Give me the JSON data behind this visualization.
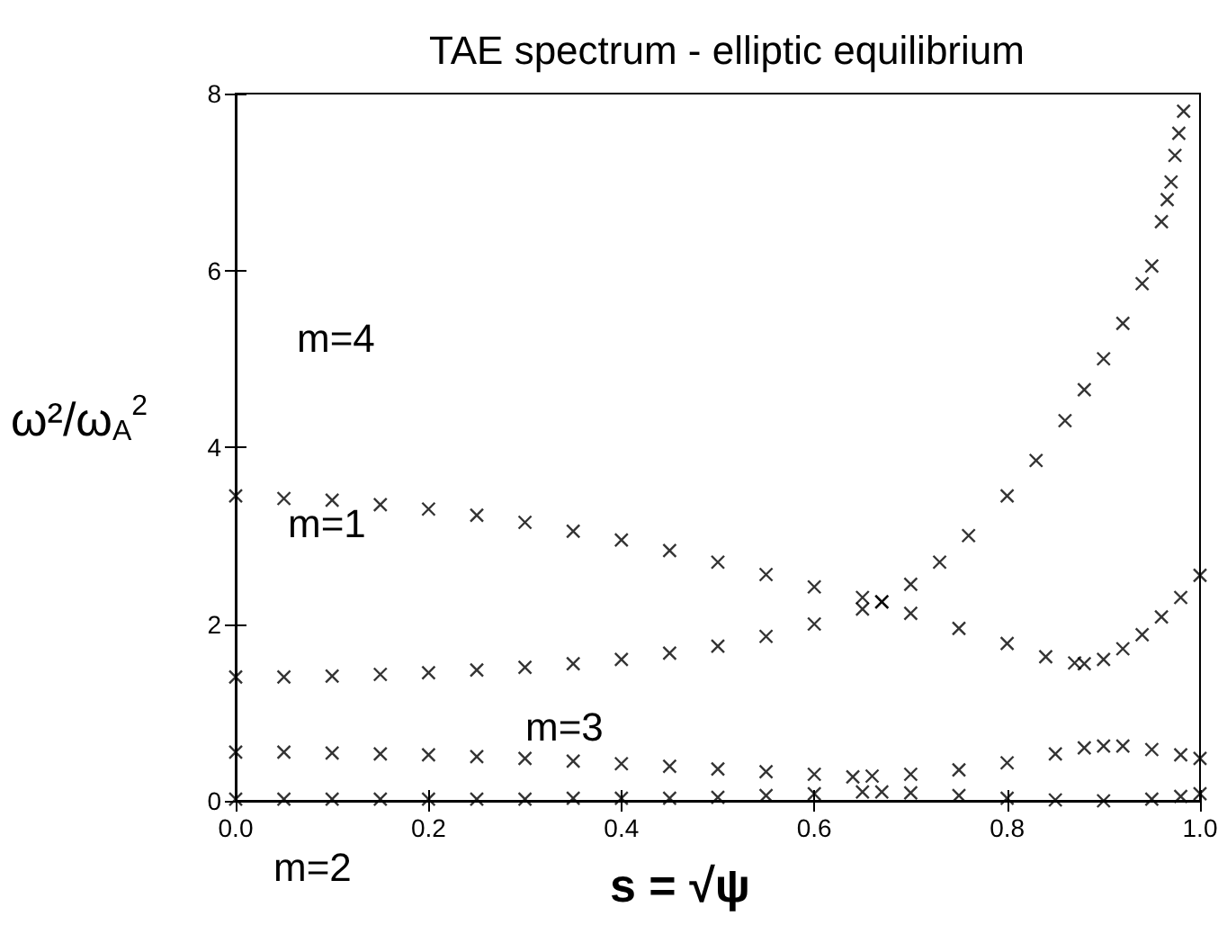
{
  "chart_data": {
    "type": "scatter",
    "title": "TAE spectrum - elliptic equilibrium",
    "xlabel": "s = √ψ",
    "ylabel": "ω²/ω$_{A}$$^{2}$",
    "xlim": [
      0,
      1
    ],
    "xticks": [
      {
        "value": 0,
        "label": "0.0"
      },
      0.2,
      0.4,
      0.6,
      0.8,
      {
        "value": 1,
        "label": "1.0"
      }
    ],
    "ylim": [
      0,
      8
    ],
    "yticks": [
      0,
      2,
      4,
      6,
      8
    ],
    "grid": false,
    "marker": "cross",
    "series": [
      {
        "color": "#000000",
        "x": [
          0,
          0.05,
          0.1,
          0.15,
          0.2,
          0.25,
          0.3,
          0.35,
          0.4,
          0.45,
          0.5,
          0.55,
          0.6,
          0.65,
          0.67,
          0.7,
          0.73,
          0.76,
          0.8,
          0.83,
          0.86,
          0.88,
          0.9,
          0.92,
          0.94,
          0.95,
          0.96,
          0.966,
          0.97,
          0.974,
          0.978,
          0.983
        ],
        "values": [
          1.4,
          1.4,
          1.41,
          1.43,
          1.45,
          1.48,
          1.51,
          1.55,
          1.6,
          1.67,
          1.75,
          1.86,
          2.0,
          2.17,
          2.25,
          2.45,
          2.7,
          3.0,
          3.45,
          3.85,
          4.3,
          4.65,
          5.0,
          5.4,
          5.85,
          6.05,
          6.55,
          6.8,
          7.0,
          7.3,
          7.55,
          7.8
        ]
      },
      {
        "color": "#000000",
        "x": [
          0,
          0.05,
          0.1,
          0.15,
          0.2,
          0.25,
          0.3,
          0.35,
          0.4,
          0.45,
          0.5,
          0.55,
          0.6,
          0.65,
          0.67,
          0.7,
          0.75,
          0.8,
          0.84,
          0.87,
          0.88,
          0.9,
          0.92,
          0.94,
          0.96,
          0.98,
          1.0
        ],
        "values": [
          3.45,
          3.42,
          3.4,
          3.35,
          3.3,
          3.23,
          3.15,
          3.05,
          2.95,
          2.83,
          2.7,
          2.56,
          2.42,
          2.3,
          2.25,
          2.12,
          1.95,
          1.78,
          1.63,
          1.56,
          1.55,
          1.6,
          1.72,
          1.88,
          2.08,
          2.3,
          2.55
        ]
      },
      {
        "color": "#000000",
        "x": [
          0,
          0.05,
          0.1,
          0.15,
          0.2,
          0.25,
          0.3,
          0.35,
          0.4,
          0.45,
          0.5,
          0.55,
          0.6,
          0.64,
          0.66,
          0.7,
          0.75,
          0.8,
          0.85,
          0.88,
          0.9,
          0.92,
          0.95,
          0.98,
          1.0
        ],
        "values": [
          0.55,
          0.55,
          0.54,
          0.53,
          0.52,
          0.5,
          0.48,
          0.45,
          0.42,
          0.39,
          0.36,
          0.33,
          0.3,
          0.27,
          0.28,
          0.3,
          0.35,
          0.43,
          0.53,
          0.6,
          0.62,
          0.62,
          0.58,
          0.52,
          0.48
        ]
      },
      {
        "color": "#000000",
        "x": [
          0,
          0.05,
          0.1,
          0.15,
          0.2,
          0.25,
          0.3,
          0.35,
          0.4,
          0.45,
          0.5,
          0.55,
          0.6,
          0.65,
          0.67,
          0.7,
          0.75,
          0.8,
          0.85,
          0.9,
          0.95,
          0.98,
          1.0
        ],
        "values": [
          0.02,
          0.02,
          0.02,
          0.02,
          0.02,
          0.02,
          0.02,
          0.03,
          0.03,
          0.03,
          0.04,
          0.06,
          0.08,
          0.1,
          0.1,
          0.09,
          0.06,
          0.03,
          0.01,
          0.0,
          0.02,
          0.05,
          0.08
        ]
      }
    ],
    "annotations": [
      "m=4",
      "m=1",
      "m=3",
      "m=2"
    ]
  }
}
